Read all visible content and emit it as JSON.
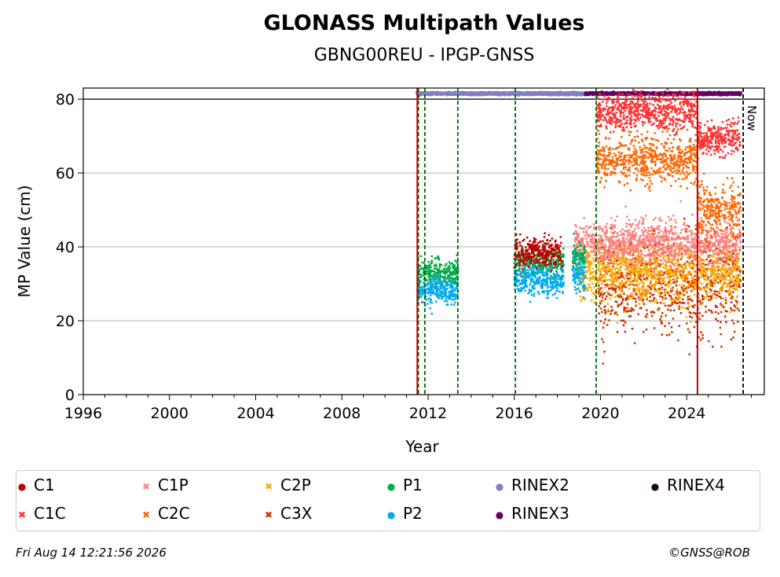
{
  "header": {
    "title": "GLONASS Multipath Values",
    "subtitle": "GBNG00REU - IPGP-GNSS"
  },
  "footer": {
    "timestamp": "Fri Aug 14 12:21:56 2026",
    "credit": "©GNSS@ROB"
  },
  "chart_data": {
    "type": "scatter",
    "xlabel": "Year",
    "ylabel": "MP Value (cm)",
    "xlim": [
      1996,
      2027.6
    ],
    "ylim": [
      0,
      83
    ],
    "xticks": [
      1996,
      2000,
      2004,
      2008,
      2012,
      2016,
      2020,
      2024
    ],
    "yticks": [
      0,
      20,
      40,
      60,
      80
    ],
    "grid": "horizontal",
    "now_label": "Now",
    "now_year": 2026.62,
    "reference_line_y": 80,
    "event_lines_green": [
      2011.55,
      2011.85,
      2013.38,
      2016.05,
      2019.8
    ],
    "event_lines_red": [
      2011.5,
      2024.5
    ],
    "legend_position": "bottom",
    "series": [
      {
        "name": "C1",
        "color": "#c00000",
        "marker": "dot",
        "segments": [
          {
            "x": [
              2016.0,
              2018.2
            ],
            "mean": 38.5,
            "spread": 1.8
          }
        ]
      },
      {
        "name": "C1C",
        "color": "#ff3030",
        "marker": "x",
        "segments": [
          {
            "x": [
              2019.8,
              2024.5
            ],
            "mean": 76.5,
            "spread": 2.5
          },
          {
            "x": [
              2024.5,
              2026.5
            ],
            "mean": 69.5,
            "spread": 2.2
          }
        ]
      },
      {
        "name": "C1P",
        "color": "#ff8080",
        "marker": "x",
        "segments": [
          {
            "x": [
              2018.8,
              2026.5
            ],
            "mean": 41.0,
            "spread": 3.0
          }
        ]
      },
      {
        "name": "C2C",
        "color": "#ff6600",
        "marker": "x",
        "segments": [
          {
            "x": [
              2019.8,
              2024.5
            ],
            "mean": 63.5,
            "spread": 3.0
          },
          {
            "x": [
              2024.5,
              2026.5
            ],
            "mean": 50.0,
            "spread": 3.5
          }
        ]
      },
      {
        "name": "C2P",
        "color": "#ffaa00",
        "marker": "x",
        "segments": [
          {
            "x": [
              2019.0,
              2026.5
            ],
            "mean": 33.0,
            "spread": 4.0
          }
        ]
      },
      {
        "name": "C3X",
        "color": "#cc3300",
        "marker": "x",
        "segments": [
          {
            "x": [
              2019.9,
              2026.5
            ],
            "mean": 30.0,
            "spread": 6.5
          }
        ]
      },
      {
        "name": "P1",
        "color": "#00aa44",
        "marker": "dot",
        "segments": [
          {
            "x": [
              2011.5,
              2013.4
            ],
            "mean": 33.0,
            "spread": 1.8
          },
          {
            "x": [
              2016.0,
              2018.3
            ],
            "mean": 36.0,
            "spread": 1.8
          },
          {
            "x": [
              2018.7,
              2019.3
            ],
            "mean": 37.0,
            "spread": 2.0
          }
        ]
      },
      {
        "name": "P2",
        "color": "#00aaee",
        "marker": "dot",
        "segments": [
          {
            "x": [
              2011.5,
              2013.4
            ],
            "mean": 28.0,
            "spread": 1.8
          },
          {
            "x": [
              2016.0,
              2018.3
            ],
            "mean": 31.0,
            "spread": 2.0
          },
          {
            "x": [
              2018.7,
              2019.3
            ],
            "mean": 32.0,
            "spread": 2.5
          }
        ]
      },
      {
        "name": "RINEX2",
        "color": "#8080c0",
        "marker": "dot",
        "segments": [
          {
            "x": [
              2011.5,
              2019.3
            ],
            "mean": 81.5,
            "spread": 0.1
          }
        ]
      },
      {
        "name": "RINEX3",
        "color": "#660066",
        "marker": "dot",
        "segments": [
          {
            "x": [
              2019.3,
              2026.5
            ],
            "mean": 81.5,
            "spread": 0.1
          }
        ]
      },
      {
        "name": "RINEX4",
        "color": "#1a0020",
        "marker": "dot",
        "segments": []
      }
    ]
  }
}
